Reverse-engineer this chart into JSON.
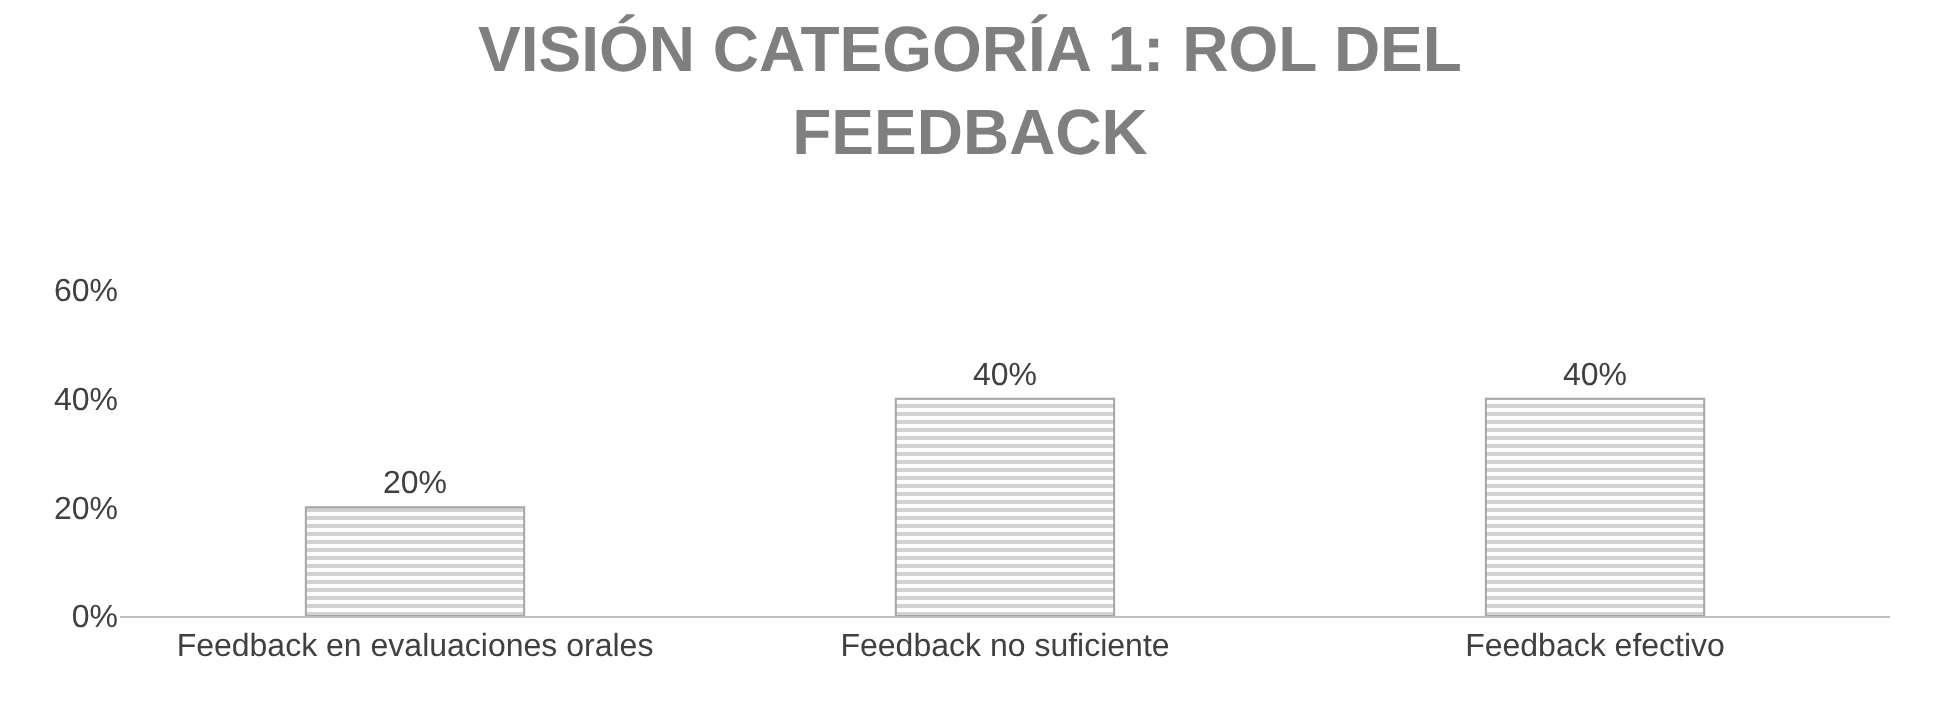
{
  "chart_data": {
    "type": "bar",
    "title": "VISIÓN CATEGORÍA 1: ROL DEL FEEDBACK",
    "categories": [
      "Feedback en evaluaciones orales",
      "Feedback no suficiente",
      "Feedback efectivo"
    ],
    "values": [
      20,
      40,
      40
    ],
    "color": "#a6a6a6",
    "value_labels": [
      "20%",
      "40%",
      "40%"
    ],
    "ylim": [
      0,
      60
    ],
    "yticks": [
      {
        "value": 0,
        "label": "0%"
      },
      {
        "value": 20,
        "label": "20%"
      },
      {
        "value": 40,
        "label": "40%"
      },
      {
        "value": 60,
        "label": "60%"
      }
    ],
    "legend": false
  }
}
